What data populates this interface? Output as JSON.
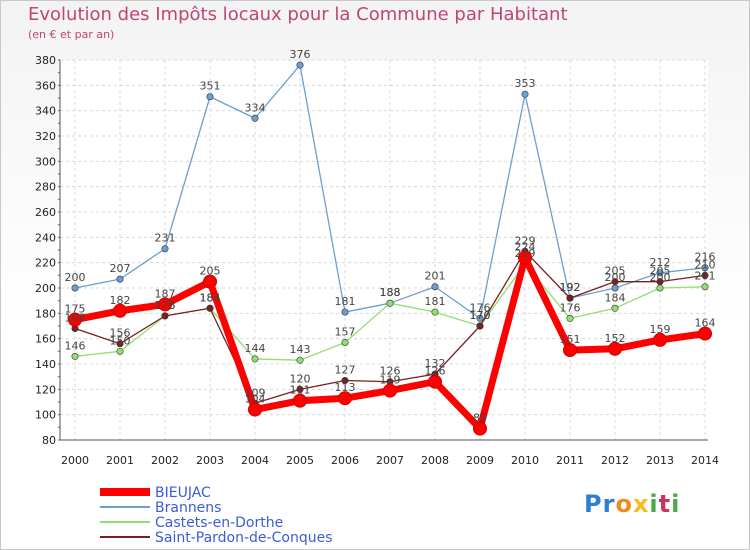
{
  "chart_data": {
    "type": "line",
    "title": "Evolution des Impôts locaux pour la Commune par Habitant",
    "subtitle": "(en € et par an)",
    "x": [
      "2000",
      "2001",
      "2002",
      "2003",
      "2004",
      "2005",
      "2006",
      "2007",
      "2008",
      "2009",
      "2010",
      "2011",
      "2012",
      "2013",
      "2014"
    ],
    "ylim": [
      80,
      380
    ],
    "yticks": [
      80,
      100,
      120,
      140,
      160,
      180,
      200,
      220,
      240,
      260,
      280,
      300,
      320,
      340,
      360,
      380
    ],
    "grid": true,
    "legend_position": "bottom-left",
    "series": [
      {
        "name": "BIEUJAC",
        "color": "#ff0000",
        "values": [
          175,
          182,
          187,
          205,
          104,
          111,
          113,
          119,
          126,
          89,
          224,
          151,
          152,
          159,
          164
        ]
      },
      {
        "name": "Brannens",
        "color": "#6a9fd0",
        "values": [
          200,
          207,
          231,
          351,
          334,
          376,
          181,
          188,
          201,
          176,
          353,
          192,
          200,
          212,
          216
        ]
      },
      {
        "name": "Castets-en-Dorthe",
        "color": "#90e070",
        "values": [
          146,
          150,
          178,
          184,
          144,
          143,
          157,
          188,
          181,
          170,
          219,
          176,
          184,
          200,
          201
        ]
      },
      {
        "name": "Saint-Pardon-de-Conques",
        "color": "#7a2020",
        "values": [
          168,
          156,
          178,
          184,
          109,
          120,
          127,
          126,
          132,
          170,
          229,
          192,
          205,
          205,
          210
        ]
      }
    ]
  },
  "logo": {
    "letters": [
      "P",
      "r",
      "o",
      "x",
      "i",
      "t",
      "i"
    ],
    "colors": [
      "#2f7fd0",
      "#2f7fd0",
      "#f08a1a",
      "#f0c020",
      "#4aa84a",
      "#d03060",
      "#4aa84a"
    ]
  }
}
